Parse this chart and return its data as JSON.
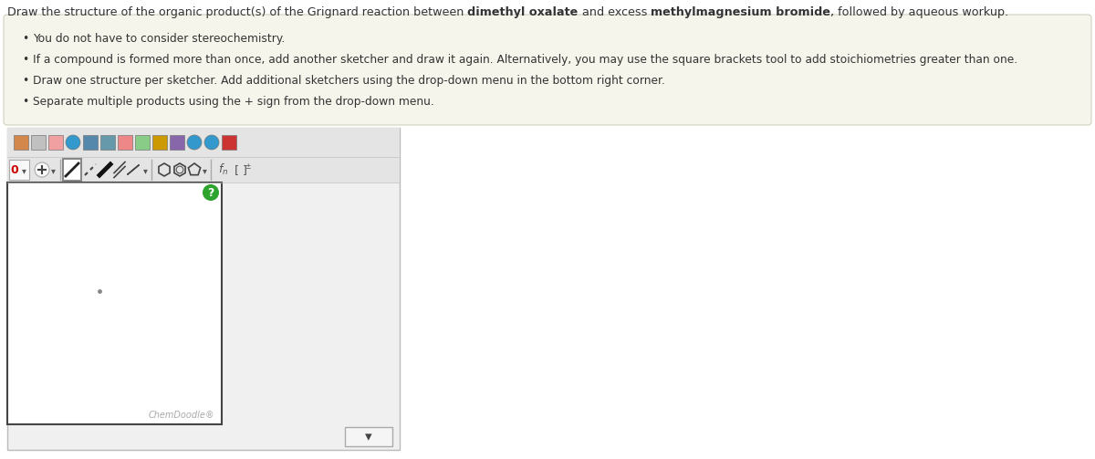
{
  "title_parts": [
    {
      "text": "Draw the structure of the organic product(s) of the Grignard reaction between ",
      "bold": false
    },
    {
      "text": "dimethyl oxalate",
      "bold": true
    },
    {
      "text": " and excess ",
      "bold": false
    },
    {
      "text": "methylmagnesium bromide",
      "bold": true
    },
    {
      "text": ", followed by aqueous workup.",
      "bold": false
    }
  ],
  "bullet_points": [
    "You do not have to consider stereochemistry.",
    "If a compound is formed more than once, add another sketcher and draw it again. Alternatively, you may use the square brackets tool to add stoichiometries greater than one.",
    "Draw one structure per sketcher. Add additional sketchers using the drop-down menu in the bottom right corner.",
    "Separate multiple products using the + sign from the drop-down menu."
  ],
  "page_bg": "#ffffff",
  "info_bg": "#f5f5eb",
  "info_border": "#d0d0c0",
  "text_color": "#333333",
  "title_fontsize": 9.2,
  "bullet_fontsize": 8.8,
  "toolbar_bg": "#e8e8e8",
  "toolbar_border": "#c0c0c0",
  "canvas_bg": "#ffffff",
  "canvas_border": "#666666",
  "chemdoodle_color": "#aaaaaa",
  "chemdoodle_text": "ChemDoodle®",
  "qmark_bg": "#2da42d",
  "dot_color": "#888888",
  "dropdown_bg": "#f5f5f5",
  "dropdown_border": "#aaaaaa"
}
